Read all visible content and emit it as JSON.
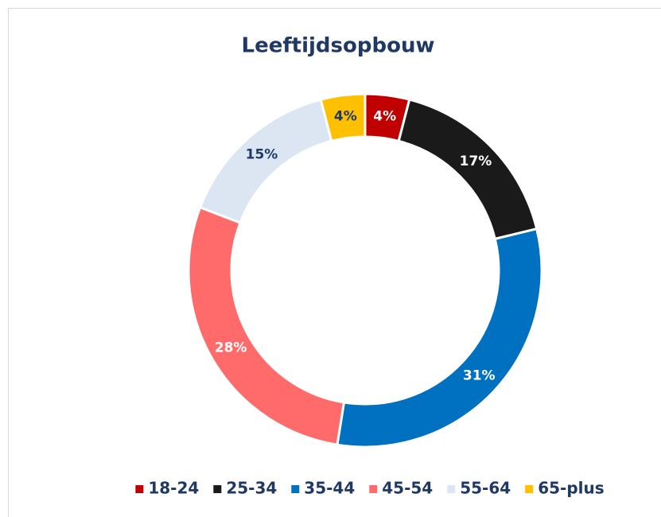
{
  "chart_data": {
    "type": "donut",
    "title": "Leeftijdsopbouw",
    "categories": [
      "18-24",
      "25-34",
      "35-44",
      "45-54",
      "55-64",
      "65-plus"
    ],
    "values": [
      4,
      17,
      31,
      28,
      15,
      4
    ],
    "value_labels": [
      "4%",
      "17%",
      "31%",
      "28%",
      "15%",
      "4%"
    ],
    "colors": [
      "#c00000",
      "#1a1a1a",
      "#0070c0",
      "#ff6b6b",
      "#dce6f2",
      "#ffc000"
    ],
    "label_colors": [
      "#ffffff",
      "#ffffff",
      "#ffffff",
      "#ffffff",
      "#1f3864",
      "#1f3864"
    ],
    "legend": "bottom"
  }
}
